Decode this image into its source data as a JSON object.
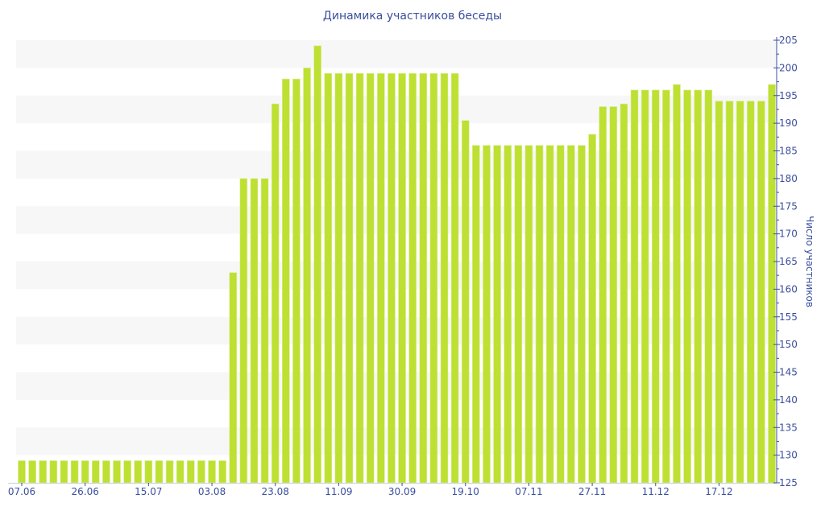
{
  "chart_data": {
    "type": "bar",
    "title": "Динамика участников беседы",
    "xlabel": "",
    "ylabel": "Число участников",
    "ylim": [
      125,
      205
    ],
    "yticks": [
      125,
      130,
      135,
      140,
      145,
      150,
      155,
      160,
      165,
      170,
      175,
      180,
      185,
      190,
      195,
      200,
      205
    ],
    "x_tick_labels": [
      {
        "index": 0,
        "label": "07.06"
      },
      {
        "index": 6,
        "label": "26.06"
      },
      {
        "index": 12,
        "label": "15.07"
      },
      {
        "index": 18,
        "label": "03.08"
      },
      {
        "index": 24,
        "label": "23.08"
      },
      {
        "index": 30,
        "label": "11.09"
      },
      {
        "index": 36,
        "label": "30.09"
      },
      {
        "index": 42,
        "label": "19.10"
      },
      {
        "index": 48,
        "label": "07.11"
      },
      {
        "index": 54,
        "label": "27.11"
      },
      {
        "index": 60,
        "label": "11.12"
      },
      {
        "index": 66,
        "label": "17.12"
      }
    ],
    "values": [
      129,
      129,
      129,
      129,
      129,
      129,
      129,
      129,
      129,
      129,
      129,
      129,
      129,
      129,
      129,
      129,
      129,
      129,
      129,
      129,
      163,
      180,
      180,
      180,
      193.5,
      198,
      198,
      200,
      204,
      199,
      199,
      199,
      199,
      199,
      199,
      199,
      199,
      199,
      199,
      199,
      199,
      199,
      190.5,
      186,
      186,
      186,
      186,
      186,
      186,
      186,
      186,
      186,
      186,
      186,
      188,
      193,
      193,
      193.5,
      196,
      196,
      196,
      196,
      197,
      196,
      196,
      196,
      194,
      194,
      194,
      194,
      194,
      197
    ],
    "color": "#bde032",
    "axis_color": "#3b4f9e",
    "band_color": "#f7f7f7",
    "legend": "none"
  }
}
